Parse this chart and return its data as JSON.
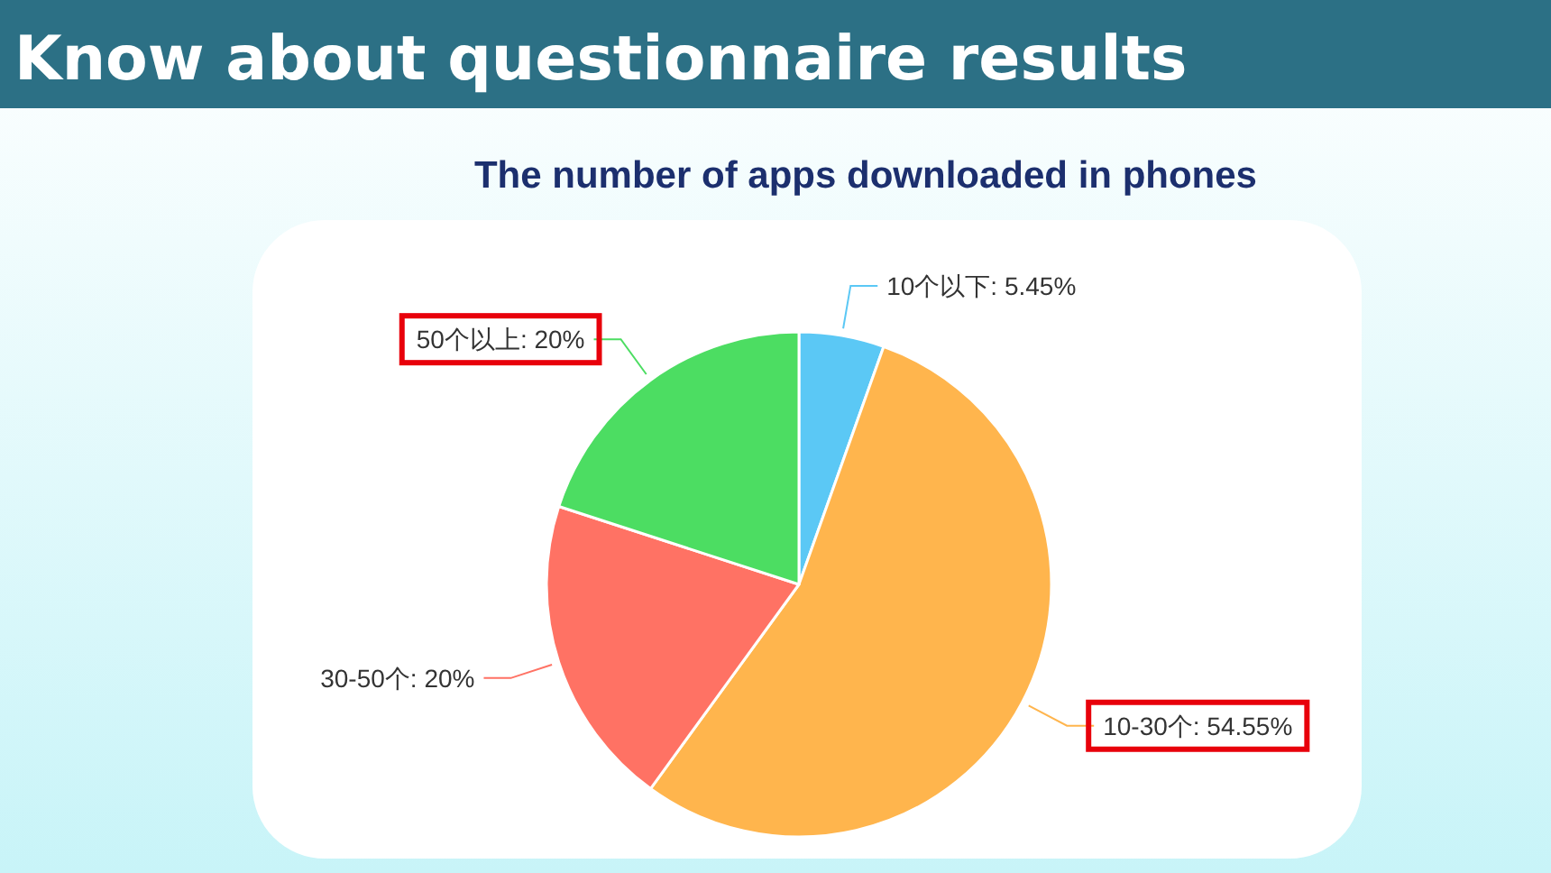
{
  "chart_data": {
    "type": "pie",
    "title": "Know about questionnaire results",
    "subtitle": "The number of apps downloaded in phones",
    "categories": [
      "10个以下",
      "10-30个",
      "30-50个",
      "50个以上"
    ],
    "values": [
      5.45,
      54.55,
      20,
      20
    ],
    "value_labels": [
      "5.45%",
      "54.55%",
      "20%",
      "20%"
    ],
    "colors": [
      "#5bc8f5",
      "#ffb54d",
      "#ff7264",
      "#4cdd62"
    ]
  }
}
